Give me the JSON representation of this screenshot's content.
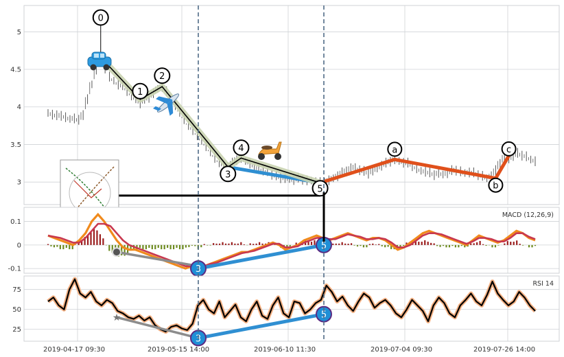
{
  "chart_data": {
    "type": "line",
    "x_ticks": [
      "2019-04-17 09:30",
      "2019-05-15 14:00",
      "2019-06-10 11:30",
      "2019-07-04 09:30",
      "2019-07-26 14:00"
    ],
    "panels": [
      {
        "id": "price",
        "label": "",
        "type": "candlestick",
        "yticks": [
          3.0,
          3.5,
          4.0,
          4.5,
          5.0
        ],
        "ylim": [
          2.7,
          5.35
        ],
        "close": [
          3.92,
          3.9,
          3.88,
          3.89,
          3.86,
          3.84,
          3.85,
          3.82,
          3.9,
          4.1,
          4.3,
          4.5,
          4.66,
          4.52,
          4.4,
          4.35,
          4.3,
          4.28,
          4.22,
          4.15,
          4.1,
          4.05,
          4.1,
          4.13,
          4.18,
          4.24,
          4.27,
          4.2,
          4.12,
          4.02,
          3.92,
          3.84,
          3.75,
          3.7,
          3.62,
          3.55,
          3.48,
          3.4,
          3.33,
          3.26,
          3.22,
          3.2,
          3.25,
          3.3,
          3.32,
          3.28,
          3.25,
          3.2,
          3.18,
          3.15,
          3.13,
          3.1,
          3.08,
          3.06,
          3.05,
          3.04,
          3.03,
          3.05,
          3.04,
          3.02,
          3.02,
          3.0,
          2.99,
          3.0,
          3.02,
          3.05,
          3.08,
          3.12,
          3.15,
          3.18,
          3.2,
          3.16,
          3.14,
          3.12,
          3.15,
          3.18,
          3.22,
          3.25,
          3.28,
          3.3,
          3.28,
          3.26,
          3.25,
          3.22,
          3.18,
          3.15,
          3.14,
          3.12,
          3.1,
          3.12,
          3.1,
          3.12,
          3.15,
          3.16,
          3.14,
          3.12,
          3.13,
          3.12,
          3.1,
          3.08,
          3.05,
          3.08,
          3.15,
          3.25,
          3.33,
          3.3,
          3.35,
          3.38,
          3.36,
          3.34,
          3.3,
          3.28
        ],
        "zigzag": {
          "labels": [
            "0",
            "1",
            "2",
            "3",
            "4",
            "5"
          ],
          "x_index": [
            12,
            21,
            26,
            41,
            44,
            62
          ],
          "values": [
            4.66,
            4.1,
            4.27,
            3.2,
            3.32,
            2.99
          ]
        },
        "correction": {
          "labels": [
            "a",
            "b",
            "c"
          ],
          "x_index": [
            79,
            102,
            105
          ],
          "values": [
            3.3,
            3.05,
            3.35
          ]
        },
        "trend": {
          "x_index": [
            41,
            62
          ],
          "values": [
            3.2,
            2.99
          ]
        },
        "level": {
          "x_index": [
            22,
            62
          ],
          "value": 2.82
        },
        "icons": [
          "car-icon",
          "airplane-icon",
          "scooter-icon",
          "fibonacci-thumbnail"
        ]
      },
      {
        "id": "macd",
        "label": "MACD (12,26,9)",
        "yticks": [
          -0.1,
          0.0,
          0.1
        ],
        "ylim": [
          -0.12,
          0.16
        ],
        "macd": [
          0.04,
          0.03,
          0.02,
          0.01,
          0.0,
          0.02,
          0.05,
          0.1,
          0.13,
          0.1,
          0.06,
          0.02,
          -0.01,
          -0.02,
          -0.02,
          -0.03,
          -0.04,
          -0.05,
          -0.06,
          -0.07,
          -0.08,
          -0.09,
          -0.1,
          -0.09,
          -0.1,
          -0.09,
          -0.08,
          -0.07,
          -0.06,
          -0.05,
          -0.04,
          -0.03,
          -0.03,
          -0.02,
          -0.01,
          0.0,
          0.01,
          0.0,
          -0.02,
          -0.01,
          0.0,
          0.02,
          0.03,
          0.04,
          0.03,
          0.02,
          0.03,
          0.04,
          0.05,
          0.04,
          0.03,
          0.02,
          0.03,
          0.03,
          0.02,
          0.0,
          -0.02,
          -0.01,
          0.01,
          0.03,
          0.05,
          0.06,
          0.05,
          0.04,
          0.03,
          0.02,
          0.01,
          0.0,
          0.02,
          0.04,
          0.03,
          0.02,
          0.01,
          0.02,
          0.04,
          0.06,
          0.05,
          0.03,
          0.02
        ],
        "signal": [
          0.04,
          0.035,
          0.03,
          0.02,
          0.01,
          0.01,
          0.03,
          0.06,
          0.09,
          0.09,
          0.08,
          0.05,
          0.02,
          0.0,
          -0.01,
          -0.02,
          -0.03,
          -0.04,
          -0.05,
          -0.06,
          -0.07,
          -0.08,
          -0.09,
          -0.09,
          -0.09,
          -0.09,
          -0.08,
          -0.075,
          -0.065,
          -0.055,
          -0.045,
          -0.035,
          -0.03,
          -0.025,
          -0.015,
          -0.005,
          0.005,
          0.005,
          -0.01,
          -0.01,
          -0.005,
          0.01,
          0.02,
          0.03,
          0.03,
          0.025,
          0.025,
          0.035,
          0.045,
          0.04,
          0.035,
          0.025,
          0.025,
          0.03,
          0.025,
          0.01,
          -0.01,
          -0.01,
          0.0,
          0.02,
          0.04,
          0.05,
          0.05,
          0.045,
          0.035,
          0.025,
          0.015,
          0.005,
          0.015,
          0.03,
          0.03,
          0.025,
          0.015,
          0.015,
          0.03,
          0.05,
          0.05,
          0.035,
          0.025
        ],
        "divergence_lines": [
          {
            "x_index": [
              12,
              26
            ],
            "values": [
              -0.03,
              -0.09
            ]
          },
          {
            "x_index": [
              26,
              49
            ],
            "values": [
              -0.1,
              0.0
            ]
          }
        ],
        "markers": [
          {
            "label": "3",
            "x_index": 26,
            "value": -0.1
          },
          {
            "label": "5",
            "x_index": 49,
            "value": 0.0
          }
        ]
      },
      {
        "id": "rsi",
        "label": "RSI 14",
        "yticks": [
          25,
          50,
          75
        ],
        "ylim": [
          10,
          92
        ],
        "rsi": [
          60,
          65,
          55,
          50,
          75,
          88,
          70,
          65,
          72,
          60,
          55,
          62,
          58,
          48,
          45,
          40,
          38,
          42,
          36,
          40,
          30,
          25,
          22,
          28,
          30,
          26,
          24,
          32,
          55,
          62,
          50,
          45,
          60,
          40,
          48,
          56,
          40,
          35,
          50,
          60,
          42,
          38,
          55,
          65,
          45,
          40,
          60,
          58,
          45,
          50,
          58,
          62,
          80,
          72,
          60,
          66,
          55,
          48,
          60,
          70,
          65,
          52,
          58,
          62,
          55,
          45,
          40,
          50,
          62,
          55,
          48,
          35,
          55,
          65,
          58,
          45,
          40,
          55,
          62,
          70,
          60,
          55,
          68,
          85,
          70,
          62,
          55,
          60,
          72,
          65,
          55,
          48
        ],
        "divergence_lines": [
          {
            "x_index": [
              8,
              26
            ],
            "values": [
              40,
              14
            ]
          },
          {
            "x_index": [
              26,
              49
            ],
            "values": [
              14,
              44
            ]
          }
        ],
        "markers": [
          {
            "label": "3",
            "x_index": 26,
            "value": 14
          },
          {
            "label": "5",
            "x_index": 49,
            "value": 44
          }
        ]
      }
    ],
    "vertical_lines_at_x_index": [
      41,
      62
    ],
    "colors": {
      "candle": "#555555",
      "zigzag": "#000000",
      "zigzag_halo": "#c9d3b0",
      "correction": "#e0501b",
      "trend": "#2f8fd2",
      "level": "#000000",
      "macd_line": "#f08a1c",
      "signal_line": "#c8384f",
      "hist_pos": "#9a1c1c",
      "hist_neg": "#6c8a1e",
      "divergence_gray": "#8c8c8c",
      "rsi_line": "#000000",
      "rsi_halo": "#f4b183",
      "marker_fill": "#1f8fd6",
      "marker_edge": "#5a2a82",
      "vline": "#4f6a86",
      "grid": "#cfd2d6"
    }
  }
}
